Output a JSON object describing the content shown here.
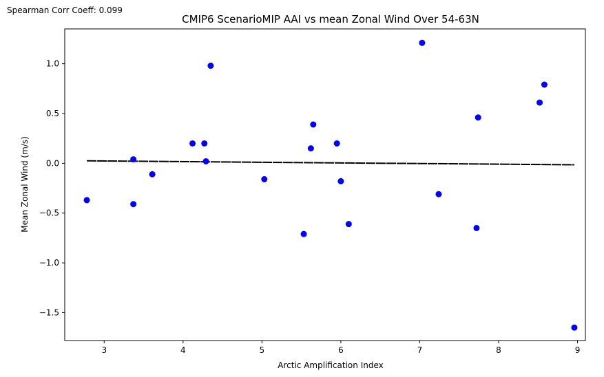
{
  "annotation": "Spearman Corr Coeff: 0.099",
  "chart_data": {
    "type": "scatter",
    "title": "CMIP6 ScenarioMIP AAI vs mean Zonal Wind Over 54-63N",
    "xlabel": "Arctic Amplification Index",
    "ylabel": "Mean Zonal Wind (m/s)",
    "xlim": [
      2.5,
      9.1
    ],
    "ylim": [
      -1.78,
      1.35
    ],
    "xticks": [
      3,
      4,
      5,
      6,
      7,
      8,
      9
    ],
    "xtick_labels": [
      "3",
      "4",
      "5",
      "6",
      "7",
      "8",
      "9"
    ],
    "yticks": [
      -1.5,
      -1.0,
      -0.5,
      0.0,
      0.5,
      1.0
    ],
    "ytick_labels": [
      "−1.5",
      "−1.0",
      "−0.5",
      "0.0",
      "0.5",
      "1.0"
    ],
    "grid": false,
    "points": {
      "color": "#0000ff",
      "x": [
        2.78,
        3.37,
        3.37,
        3.61,
        4.12,
        4.27,
        4.29,
        4.35,
        5.03,
        5.53,
        5.62,
        5.65,
        5.95,
        6.0,
        6.1,
        7.03,
        7.24,
        7.72,
        7.74,
        8.52,
        8.58,
        8.96
      ],
      "y": [
        -0.37,
        0.04,
        -0.41,
        -0.11,
        0.2,
        0.2,
        0.02,
        0.98,
        -0.16,
        -0.71,
        0.15,
        0.39,
        0.2,
        -0.18,
        -0.61,
        1.21,
        -0.31,
        -0.65,
        0.46,
        0.61,
        0.79,
        -1.65
      ]
    },
    "trend_line": {
      "color": "#000000",
      "x": [
        2.78,
        8.96
      ],
      "y": [
        0.025,
        -0.015
      ]
    }
  }
}
